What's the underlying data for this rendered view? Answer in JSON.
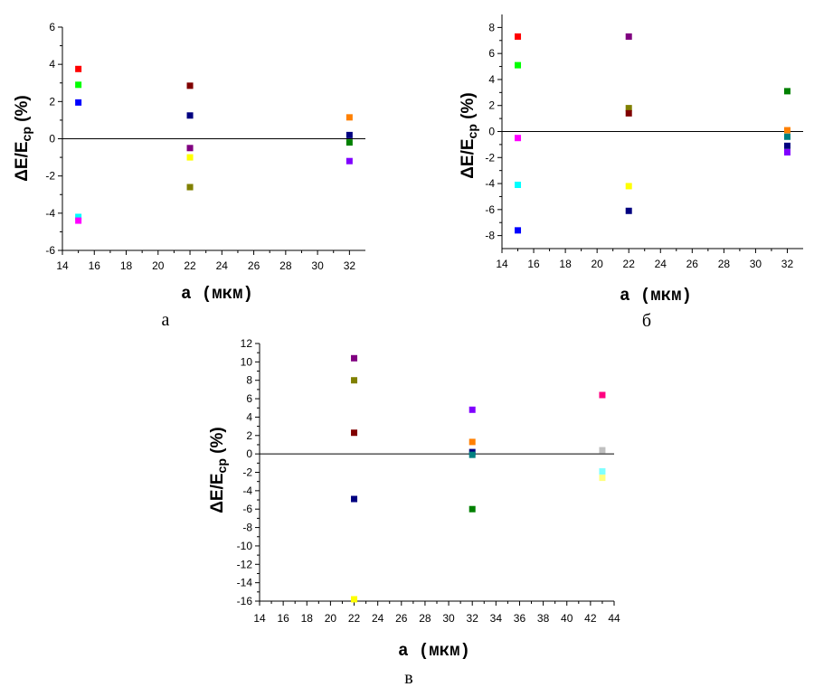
{
  "chart_data": [
    {
      "type": "scatter",
      "caption": "а",
      "xlabel": "a  (мкм)",
      "ylabel_main": "ΔE/E",
      "ylabel_sub": "cp",
      "ylabel_tail": " (%)",
      "xlim": [
        14,
        33
      ],
      "ylim": [
        -6,
        6
      ],
      "xticks": [
        14,
        16,
        18,
        20,
        22,
        24,
        26,
        28,
        30,
        32
      ],
      "yticks": [
        -6,
        -4,
        -2,
        0,
        2,
        4,
        6
      ],
      "zero_line": true,
      "points": [
        {
          "x": 15,
          "y": 3.75,
          "color": "#ff0000"
        },
        {
          "x": 15,
          "y": 2.9,
          "color": "#00ff00"
        },
        {
          "x": 15,
          "y": 1.95,
          "color": "#0000ff"
        },
        {
          "x": 15,
          "y": -4.2,
          "color": "#00ffff"
        },
        {
          "x": 15,
          "y": -4.4,
          "color": "#ff00ff"
        },
        {
          "x": 22,
          "y": 2.85,
          "color": "#800000"
        },
        {
          "x": 22,
          "y": 1.25,
          "color": "#000080"
        },
        {
          "x": 22,
          "y": -0.5,
          "color": "#800080"
        },
        {
          "x": 22,
          "y": -1.0,
          "color": "#ffff00"
        },
        {
          "x": 22,
          "y": -2.6,
          "color": "#808000"
        },
        {
          "x": 32,
          "y": 1.15,
          "color": "#ff8000"
        },
        {
          "x": 32,
          "y": 0.2,
          "color": "#000080"
        },
        {
          "x": 32,
          "y": -0.2,
          "color": "#008000"
        },
        {
          "x": 32,
          "y": -1.2,
          "color": "#8000ff"
        }
      ]
    },
    {
      "type": "scatter",
      "caption": "б",
      "xlabel": "a  (мкм)",
      "ylabel_main": "ΔE/E",
      "ylabel_sub": "cp",
      "ylabel_tail": " (%)",
      "xlim": [
        14,
        33
      ],
      "ylim": [
        -9,
        9
      ],
      "xticks": [
        14,
        16,
        18,
        20,
        22,
        24,
        26,
        28,
        30,
        32
      ],
      "yticks": [
        -8,
        -6,
        -4,
        -2,
        0,
        2,
        4,
        6,
        8
      ],
      "zero_line": true,
      "points": [
        {
          "x": 15,
          "y": 7.3,
          "color": "#ff0000"
        },
        {
          "x": 15,
          "y": 5.1,
          "color": "#00ff00"
        },
        {
          "x": 15,
          "y": -0.5,
          "color": "#ff00ff"
        },
        {
          "x": 15,
          "y": -4.1,
          "color": "#00ffff"
        },
        {
          "x": 15,
          "y": -7.6,
          "color": "#0000ff"
        },
        {
          "x": 22,
          "y": 7.3,
          "color": "#800080"
        },
        {
          "x": 22,
          "y": 1.8,
          "color": "#808000"
        },
        {
          "x": 22,
          "y": 1.4,
          "color": "#800000"
        },
        {
          "x": 22,
          "y": -4.2,
          "color": "#ffff00"
        },
        {
          "x": 22,
          "y": -6.1,
          "color": "#000080"
        },
        {
          "x": 32,
          "y": 3.1,
          "color": "#008000"
        },
        {
          "x": 32,
          "y": 0.1,
          "color": "#ff8000"
        },
        {
          "x": 32,
          "y": -0.4,
          "color": "#008080"
        },
        {
          "x": 32,
          "y": -1.1,
          "color": "#000080"
        },
        {
          "x": 32,
          "y": -1.6,
          "color": "#8000ff"
        }
      ]
    },
    {
      "type": "scatter",
      "caption": "в",
      "xlabel": "a  (мкм)",
      "ylabel_main": "ΔE/E",
      "ylabel_sub": "cp",
      "ylabel_tail": " (%)",
      "xlim": [
        14,
        44
      ],
      "ylim": [
        -16,
        12
      ],
      "xticks": [
        14,
        16,
        18,
        20,
        22,
        24,
        26,
        28,
        30,
        32,
        34,
        36,
        38,
        40,
        42,
        44
      ],
      "yticks": [
        -16,
        -14,
        -12,
        -10,
        -8,
        -6,
        -4,
        -2,
        0,
        2,
        4,
        6,
        8,
        10,
        12
      ],
      "zero_line": true,
      "points": [
        {
          "x": 22,
          "y": 10.4,
          "color": "#800080"
        },
        {
          "x": 22,
          "y": 8.0,
          "color": "#808000"
        },
        {
          "x": 22,
          "y": 2.3,
          "color": "#800000"
        },
        {
          "x": 22,
          "y": -4.9,
          "color": "#000080"
        },
        {
          "x": 22,
          "y": -15.8,
          "color": "#ffff00"
        },
        {
          "x": 32,
          "y": 4.8,
          "color": "#8000ff"
        },
        {
          "x": 32,
          "y": 1.3,
          "color": "#ff8000"
        },
        {
          "x": 32,
          "y": 0.2,
          "color": "#000080"
        },
        {
          "x": 32,
          "y": -0.1,
          "color": "#008080"
        },
        {
          "x": 32,
          "y": -6.0,
          "color": "#008000"
        },
        {
          "x": 43,
          "y": 6.4,
          "color": "#ff0080"
        },
        {
          "x": 43,
          "y": 0.4,
          "color": "#c0c0c0"
        },
        {
          "x": 43,
          "y": -1.9,
          "color": "#80ffff"
        },
        {
          "x": 43,
          "y": -2.6,
          "color": "#ffff80"
        }
      ]
    }
  ]
}
